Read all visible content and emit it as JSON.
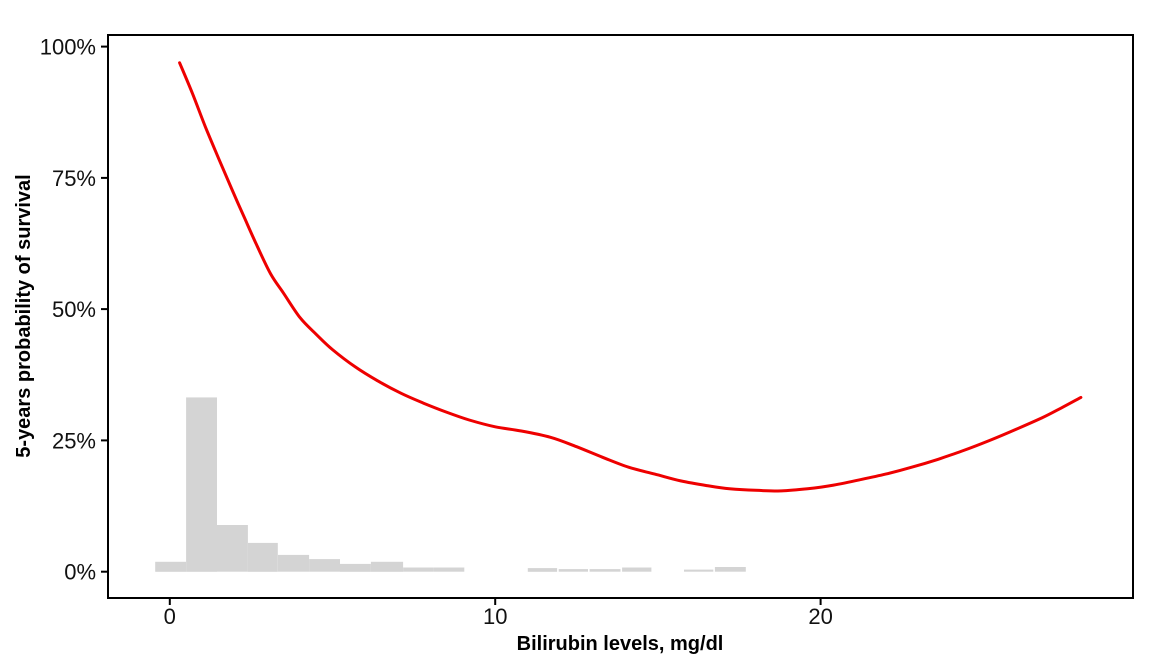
{
  "chart_data": {
    "type": "line",
    "title": "",
    "xlabel": "Bilirubin levels, mg/dl",
    "ylabel": "5-years probability of survival",
    "xlim": [
      -1.9,
      29.6
    ],
    "ylim": [
      -5,
      102.2
    ],
    "grid": false,
    "panel_border": true,
    "legend": "none",
    "x_ticks": [
      {
        "value": 0,
        "label": "0"
      },
      {
        "value": 10,
        "label": "10"
      },
      {
        "value": 20,
        "label": "20"
      }
    ],
    "y_ticks": [
      {
        "value": 0,
        "label": "0%"
      },
      {
        "value": 25,
        "label": "25%"
      },
      {
        "value": 50,
        "label": "50%"
      },
      {
        "value": 75,
        "label": "75%"
      },
      {
        "value": 100,
        "label": "100%"
      }
    ],
    "colors": {
      "curve": "#EE0000",
      "bars": "#D4D4D4",
      "axis": "#000000",
      "text": "#111111"
    },
    "series": [
      {
        "name": "smoothed-5-year-survival",
        "type": "line",
        "color": "#EE0000",
        "points": [
          [
            0.3,
            96.9
          ],
          [
            0.7,
            91.0
          ],
          [
            1.1,
            84.6
          ],
          [
            1.5,
            78.7
          ],
          [
            1.9,
            72.9
          ],
          [
            2.3,
            67.3
          ],
          [
            2.7,
            61.8
          ],
          [
            3.1,
            56.7
          ],
          [
            3.5,
            53.0
          ],
          [
            4.0,
            48.4
          ],
          [
            4.5,
            45.2
          ],
          [
            5.0,
            42.3
          ],
          [
            5.7,
            39.0
          ],
          [
            6.4,
            36.3
          ],
          [
            7.1,
            34.0
          ],
          [
            7.8,
            32.1
          ],
          [
            8.5,
            30.4
          ],
          [
            9.2,
            28.9
          ],
          [
            10.0,
            27.6
          ],
          [
            10.8,
            26.8
          ],
          [
            11.7,
            25.6
          ],
          [
            12.5,
            23.8
          ],
          [
            13.3,
            21.8
          ],
          [
            14.1,
            19.9
          ],
          [
            14.9,
            18.6
          ],
          [
            15.7,
            17.3
          ],
          [
            16.5,
            16.4
          ],
          [
            17.2,
            15.8
          ],
          [
            18.0,
            15.5
          ],
          [
            18.8,
            15.4
          ],
          [
            19.6,
            15.8
          ],
          [
            20.4,
            16.5
          ],
          [
            21.2,
            17.5
          ],
          [
            22.0,
            18.6
          ],
          [
            22.8,
            19.9
          ],
          [
            23.6,
            21.4
          ],
          [
            24.4,
            23.1
          ],
          [
            25.2,
            25.0
          ],
          [
            26.0,
            27.1
          ],
          [
            26.8,
            29.3
          ],
          [
            27.4,
            31.2
          ],
          [
            28.0,
            33.2
          ]
        ]
      }
    ],
    "histogram": {
      "name": "bilirubin-distribution",
      "color": "#D4D4D4",
      "unit": "percent of patients",
      "bars": [
        {
          "x0": -0.45,
          "x1": 0.5,
          "h": 1.9
        },
        {
          "x0": 0.5,
          "x1": 1.45,
          "h": 33.2
        },
        {
          "x0": 1.45,
          "x1": 2.4,
          "h": 8.9
        },
        {
          "x0": 2.4,
          "x1": 3.32,
          "h": 5.5
        },
        {
          "x0": 3.32,
          "x1": 4.28,
          "h": 3.2
        },
        {
          "x0": 4.28,
          "x1": 5.23,
          "h": 2.4
        },
        {
          "x0": 5.23,
          "x1": 6.18,
          "h": 1.5
        },
        {
          "x0": 6.18,
          "x1": 7.17,
          "h": 1.9
        },
        {
          "x0": 7.17,
          "x1": 8.09,
          "h": 0.8
        },
        {
          "x0": 8.09,
          "x1": 9.05,
          "h": 0.8
        },
        {
          "x0": 11.0,
          "x1": 11.9,
          "h": 0.7
        },
        {
          "x0": 11.95,
          "x1": 12.85,
          "h": 0.5
        },
        {
          "x0": 12.9,
          "x1": 13.85,
          "h": 0.5
        },
        {
          "x0": 13.9,
          "x1": 14.8,
          "h": 0.8
        },
        {
          "x0": 15.8,
          "x1": 16.7,
          "h": 0.4
        },
        {
          "x0": 16.75,
          "x1": 17.7,
          "h": 0.9
        }
      ]
    }
  }
}
